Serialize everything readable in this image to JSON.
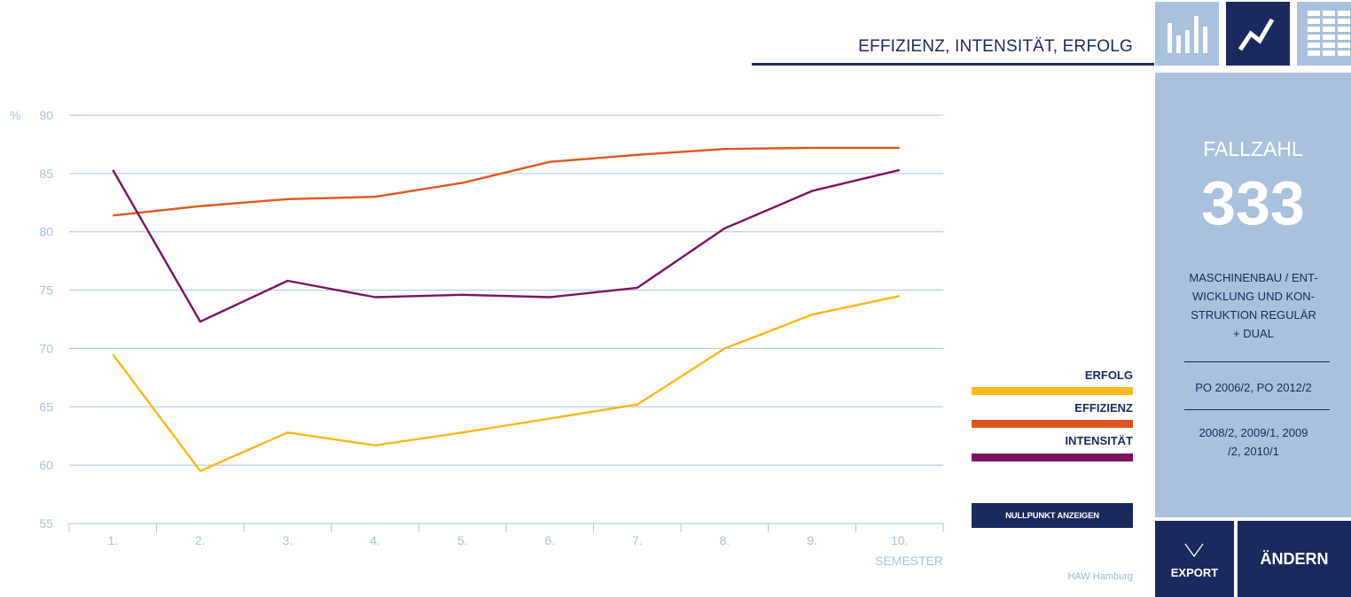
{
  "header": {
    "title": "EFFIZIENZ, INTENSITÄT, ERFOLG"
  },
  "view_buttons": [
    {
      "icon": "bar-chart-icon",
      "active": false
    },
    {
      "icon": "line-chart-icon",
      "active": true
    },
    {
      "icon": "table-icon",
      "active": false
    }
  ],
  "colors": {
    "navy": "#1b2a5e",
    "light_blue": "#a9c1dd",
    "erfolg": "#f9b71a",
    "effizienz": "#e0561c",
    "intensitaet": "#7a1461"
  },
  "chart_data": {
    "type": "line",
    "x": [
      "1.",
      "2.",
      "3.",
      "4.",
      "5.",
      "6.",
      "7.",
      "8.",
      "9.",
      "10."
    ],
    "series": [
      {
        "name": "EFFIZIENZ",
        "color": "#e0561c",
        "values": [
          81.4,
          82.2,
          82.8,
          83.0,
          84.2,
          86.0,
          86.6,
          87.1,
          87.2,
          87.2
        ]
      },
      {
        "name": "INTENSITÄT",
        "color": "#7a1461",
        "values": [
          85.3,
          72.3,
          75.8,
          74.4,
          74.6,
          74.4,
          75.2,
          80.3,
          83.5,
          85.3
        ]
      },
      {
        "name": "ERFOLG",
        "color": "#f9b71a",
        "values": [
          69.5,
          59.5,
          62.8,
          61.7,
          62.8,
          64.0,
          65.2,
          70.0,
          72.9,
          74.5
        ]
      }
    ],
    "yticks": [
      55,
      60,
      65,
      70,
      75,
      80,
      85,
      90
    ],
    "ylim": [
      55,
      90
    ],
    "yunit": "%",
    "xlabel": "SEMESTER",
    "grid": true
  },
  "legend": {
    "items": [
      {
        "label": "ERFOLG",
        "color": "#f9b71a"
      },
      {
        "label": "EFFIZIENZ",
        "color": "#e0561c"
      },
      {
        "label": "INTENSITÄT",
        "color": "#7a1461"
      }
    ],
    "nullpunkt_label": "NULLPUNKT ANZEIGEN"
  },
  "footer": {
    "source": "HAW Hamburg"
  },
  "panel": {
    "fallzahl_label": "FALLZAHL",
    "fallzahl_value": "333",
    "program_lines": [
      "MASCHINENBAU / ENT-",
      "WICKLUNG UND KON-",
      "STRUKTION REGULÄR",
      "+ DUAL"
    ],
    "po": "PO 2006/2, PO 2012/2",
    "cohorts_lines": [
      "2008/2, 2009/1, 2009",
      "/2, 2010/1"
    ]
  },
  "buttons": {
    "export": "EXPORT",
    "andern": "ÄNDERN"
  }
}
